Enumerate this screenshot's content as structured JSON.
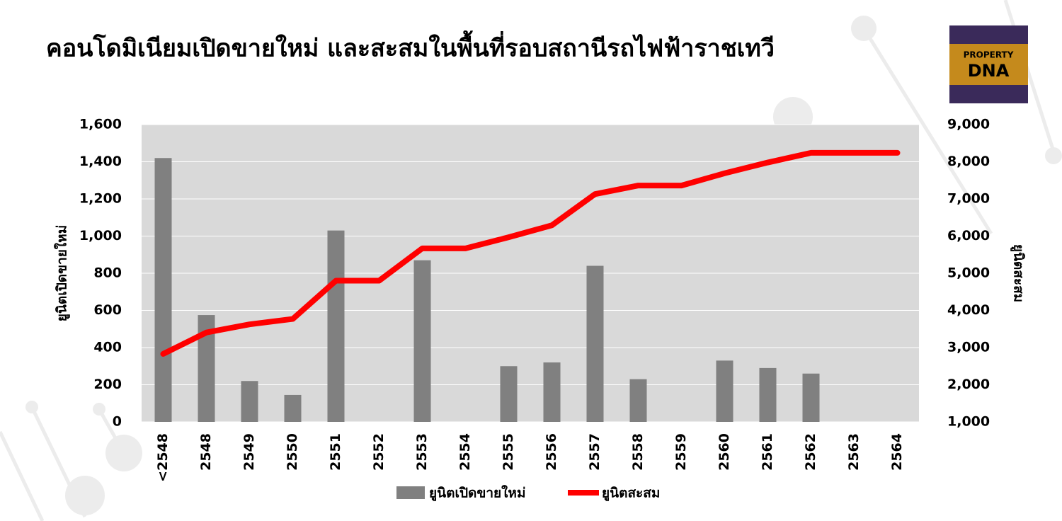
{
  "logo": {
    "line1": "PROPERTY",
    "line2": "DNA"
  },
  "chart_data": {
    "type": "bar-line",
    "title": "คอนโดมิเนียมเปิดขายใหม่ และสะสมในพื้นที่รอบสถานีรถไฟฟ้าราชเทวี",
    "y_label": "ยูนิตเปิดขายใหม่",
    "y2_label": "ยูนิตสะสม",
    "categories": [
      "<2548",
      "2548",
      "2549",
      "2550",
      "2551",
      "2552",
      "2553",
      "2554",
      "2555",
      "2556",
      "2557",
      "2558",
      "2559",
      "2560",
      "2561",
      "2562",
      "2563",
      "2564"
    ],
    "series": [
      {
        "name": "ยูนิตเปิดขายใหม่",
        "type": "bar",
        "color": "#808080",
        "values": [
          1420,
          575,
          220,
          145,
          1030,
          0,
          870,
          0,
          300,
          320,
          840,
          230,
          0,
          330,
          290,
          260,
          0,
          0
        ]
      },
      {
        "name": "ยูนิตสะสม",
        "type": "line",
        "color": "#ff0000",
        "axis": "y2",
        "values": [
          2830,
          3405,
          3625,
          3770,
          4800,
          4800,
          5670,
          5670,
          5970,
          6290,
          7130,
          7360,
          7360,
          7690,
          7980,
          8240,
          8240,
          8240
        ]
      }
    ],
    "ylim": [
      0,
      1600
    ],
    "yticks": [
      0,
      200,
      400,
      600,
      800,
      {
        "value": 1000,
        "label": "1,000"
      },
      {
        "value": 1200,
        "label": "1,200"
      },
      {
        "value": 1400,
        "label": "1,400"
      },
      {
        "value": 1600,
        "label": "1,600"
      }
    ],
    "y2lim": [
      1000,
      9000
    ],
    "y2ticks": [
      {
        "value": 1000,
        "label": "1,000"
      },
      {
        "value": 2000,
        "label": "2,000"
      },
      {
        "value": 3000,
        "label": "3,000"
      },
      {
        "value": 4000,
        "label": "4,000"
      },
      {
        "value": 5000,
        "label": "5,000"
      },
      {
        "value": 6000,
        "label": "6,000"
      },
      {
        "value": 7000,
        "label": "7,000"
      },
      {
        "value": 8000,
        "label": "8,000"
      },
      {
        "value": 9000,
        "label": "9,000"
      }
    ],
    "grid": true,
    "legend": "bottom"
  }
}
